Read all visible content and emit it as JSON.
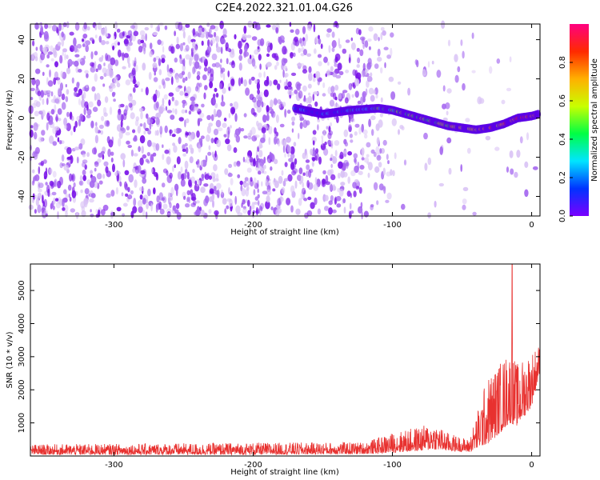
{
  "title": "C2E4.2022.321.01.04.G26",
  "colors": {
    "axis": "#000000",
    "snr_line": "#e8312f",
    "scatter_dim": "#d9c2f5",
    "scatter_mid": "#a567f0",
    "scatter_strong": "#7a14e8",
    "colorbar": [
      "#7a00ff",
      "#0033ff",
      "#00e5ff",
      "#00ff44",
      "#c8ff00",
      "#ffb000",
      "#ff2a00",
      "#ff0080"
    ]
  },
  "chart_data": [
    {
      "type": "heatmap",
      "name": "spectrogram",
      "xlabel": "Height of straight line (km)",
      "ylabel": "Frequency (Hz)",
      "xlim": [
        -360,
        6
      ],
      "ylim": [
        -50,
        48
      ],
      "xticks": [
        -300,
        -200,
        -100,
        0
      ],
      "yticks": [
        -40,
        -20,
        0,
        20,
        40
      ],
      "noise_region_x": [
        -360,
        -120
      ],
      "signal_track": [
        {
          "x": -170,
          "y": 5
        },
        {
          "x": -150,
          "y": 2
        },
        {
          "x": -130,
          "y": 4
        },
        {
          "x": -110,
          "y": 5
        },
        {
          "x": -100,
          "y": 4
        },
        {
          "x": -90,
          "y": 2
        },
        {
          "x": -80,
          "y": 0
        },
        {
          "x": -70,
          "y": -2
        },
        {
          "x": -60,
          "y": -4
        },
        {
          "x": -50,
          "y": -5
        },
        {
          "x": -40,
          "y": -6
        },
        {
          "x": -30,
          "y": -5
        },
        {
          "x": -20,
          "y": -3
        },
        {
          "x": -10,
          "y": 0
        },
        {
          "x": 0,
          "y": 1
        },
        {
          "x": 5,
          "y": 2
        }
      ],
      "colorbar": {
        "label": "Normalized spectral amplitude",
        "range": [
          0,
          1
        ],
        "ticks": [
          0.0,
          0.2,
          0.4,
          0.6,
          0.8
        ]
      }
    },
    {
      "type": "line",
      "name": "snr",
      "xlabel": "Height of straight line (km)",
      "ylabel": "SNR (10 * v/v)",
      "xlim": [
        -360,
        6
      ],
      "ylim": [
        0,
        5800
      ],
      "xticks": [
        -300,
        -200,
        -100,
        0
      ],
      "yticks": [
        1000,
        2000,
        3000,
        4000,
        5000
      ],
      "envelope": [
        {
          "x": -360,
          "low": 40,
          "high": 350
        },
        {
          "x": -200,
          "low": 40,
          "high": 400
        },
        {
          "x": -120,
          "low": 60,
          "high": 420
        },
        {
          "x": -100,
          "low": 100,
          "high": 700
        },
        {
          "x": -80,
          "low": 150,
          "high": 900
        },
        {
          "x": -70,
          "low": 200,
          "high": 1000
        },
        {
          "x": -60,
          "low": 150,
          "high": 700
        },
        {
          "x": -45,
          "low": 120,
          "high": 500
        },
        {
          "x": -40,
          "low": 200,
          "high": 1200
        },
        {
          "x": -35,
          "low": 300,
          "high": 2000
        },
        {
          "x": -30,
          "low": 400,
          "high": 2500
        },
        {
          "x": -20,
          "low": 800,
          "high": 3000
        },
        {
          "x": -16,
          "low": 1000,
          "high": 3200
        },
        {
          "x": -10,
          "low": 900,
          "high": 2800
        },
        {
          "x": 0,
          "low": 1500,
          "high": 3200
        },
        {
          "x": 6,
          "low": 2500,
          "high": 3400
        }
      ],
      "peak": {
        "x": -14,
        "y": 5800
      }
    }
  ]
}
